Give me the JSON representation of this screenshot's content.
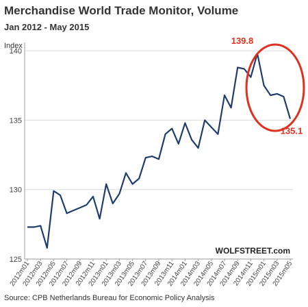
{
  "header": {
    "title": "Merchandise World Trade Monitor, Volume",
    "subtitle": "Jan 2012 - May 2015"
  },
  "footer": {
    "source": "Source: CPB Netherlands Bureau for Economic Policy Analysis"
  },
  "watermark": "WOLFSTREET.com",
  "colors": {
    "line": "#1f3d6b",
    "annotation": "#e03020",
    "grid": "#dcdcdc"
  },
  "chart_data": {
    "type": "line",
    "title": "Merchandise World Trade Monitor, Volume",
    "subtitle": "Jan 2012 - May 2015",
    "xlabel": "",
    "ylabel": "Index",
    "ylim": [
      125,
      140.6
    ],
    "yticks": [
      125,
      130,
      135,
      140
    ],
    "grid": true,
    "x": [
      "2012m01",
      "2012m02",
      "2012m03",
      "2012m04",
      "2012m05",
      "2012m06",
      "2012m07",
      "2012m08",
      "2012m09",
      "2012m10",
      "2012m11",
      "2012m12",
      "2013m01",
      "2013m02",
      "2013m03",
      "2013m04",
      "2013m05",
      "2013m06",
      "2013m07",
      "2013m08",
      "2013m09",
      "2013m10",
      "2013m11",
      "2013m12",
      "2014m01",
      "2014m02",
      "2014m03",
      "2014m04",
      "2014m05",
      "2014m06",
      "2014m07",
      "2014m08",
      "2014m09",
      "2014m10",
      "2014m11",
      "2014m12",
      "2015m01",
      "2015m02",
      "2015m03",
      "2015m04",
      "2015m05"
    ],
    "xtick_labels": [
      "2012m01",
      "2012m03",
      "2012m05",
      "2012m07",
      "2012m09",
      "2012m11",
      "2013m01",
      "2013m03",
      "2013m05",
      "2013m07",
      "2013m09",
      "2013m11",
      "2014m01",
      "2014m03",
      "2014m05",
      "2014m07",
      "2014m09",
      "2014m11",
      "2015m01",
      "2015m03",
      "2015m05"
    ],
    "series": [
      {
        "values": [
          127.3,
          127.3,
          127.4,
          125.8,
          129.9,
          129.6,
          128.3,
          128.5,
          128.7,
          128.9,
          129.5,
          127.9,
          130.4,
          129.0,
          129.7,
          131.2,
          130.4,
          130.8,
          132.3,
          132.4,
          132.2,
          134.0,
          134.4,
          133.3,
          134.8,
          133.6,
          133.0,
          135.0,
          134.5,
          134.0,
          136.8,
          135.9,
          138.8,
          138.7,
          138.1,
          139.8,
          137.5,
          136.8,
          136.9,
          136.7,
          135.1
        ]
      }
    ],
    "annotations": [
      {
        "label": "139.8",
        "x": "2014m12",
        "y": 139.8
      },
      {
        "label": "135.1",
        "x": "2015m05",
        "y": 135.1
      }
    ]
  }
}
